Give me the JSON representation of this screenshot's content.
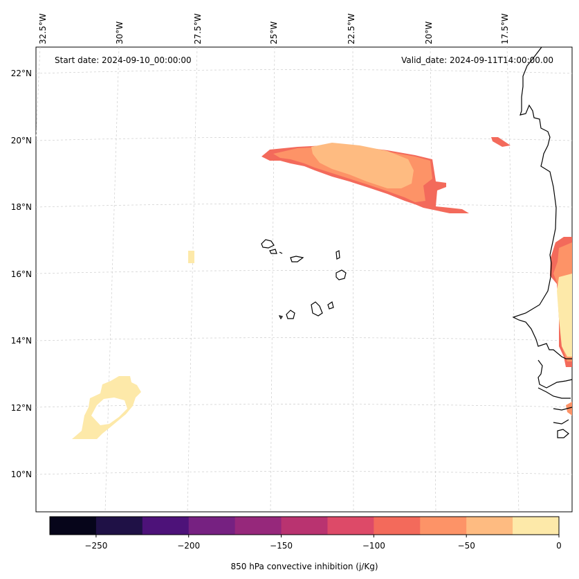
{
  "map": {
    "start_date": "Start date: 2024-09-10_00:00:00",
    "valid_date": "Valid_date: 2024-09-11T14:00:00.00",
    "lon_labels": [
      "32.5°W",
      "30°W",
      "27.5°W",
      "25°W",
      "22.5°W",
      "20°W",
      "17.5°W"
    ],
    "lat_labels": [
      "22°N",
      "20°N",
      "18°N",
      "16°N",
      "14°N",
      "12°N",
      "10°N"
    ],
    "variable": "850 hPa convective inhibition",
    "units": "j/Kg"
  },
  "colorbar": {
    "label": "850 hPa convective inhibition (j/Kg)",
    "tick_labels": [
      "−250",
      "−200",
      "−150",
      "−100",
      "−50",
      "0"
    ],
    "ticks": [
      -250,
      -200,
      -150,
      -100,
      -50,
      0
    ],
    "range": [
      -275,
      0
    ],
    "colors": [
      "#06051a",
      "#1f1146",
      "#4d1279",
      "#762181",
      "#96287b",
      "#b93370",
      "#dd4a68",
      "#f36a5b",
      "#fd9367",
      "#febb81",
      "#fde9a9"
    ]
  }
}
